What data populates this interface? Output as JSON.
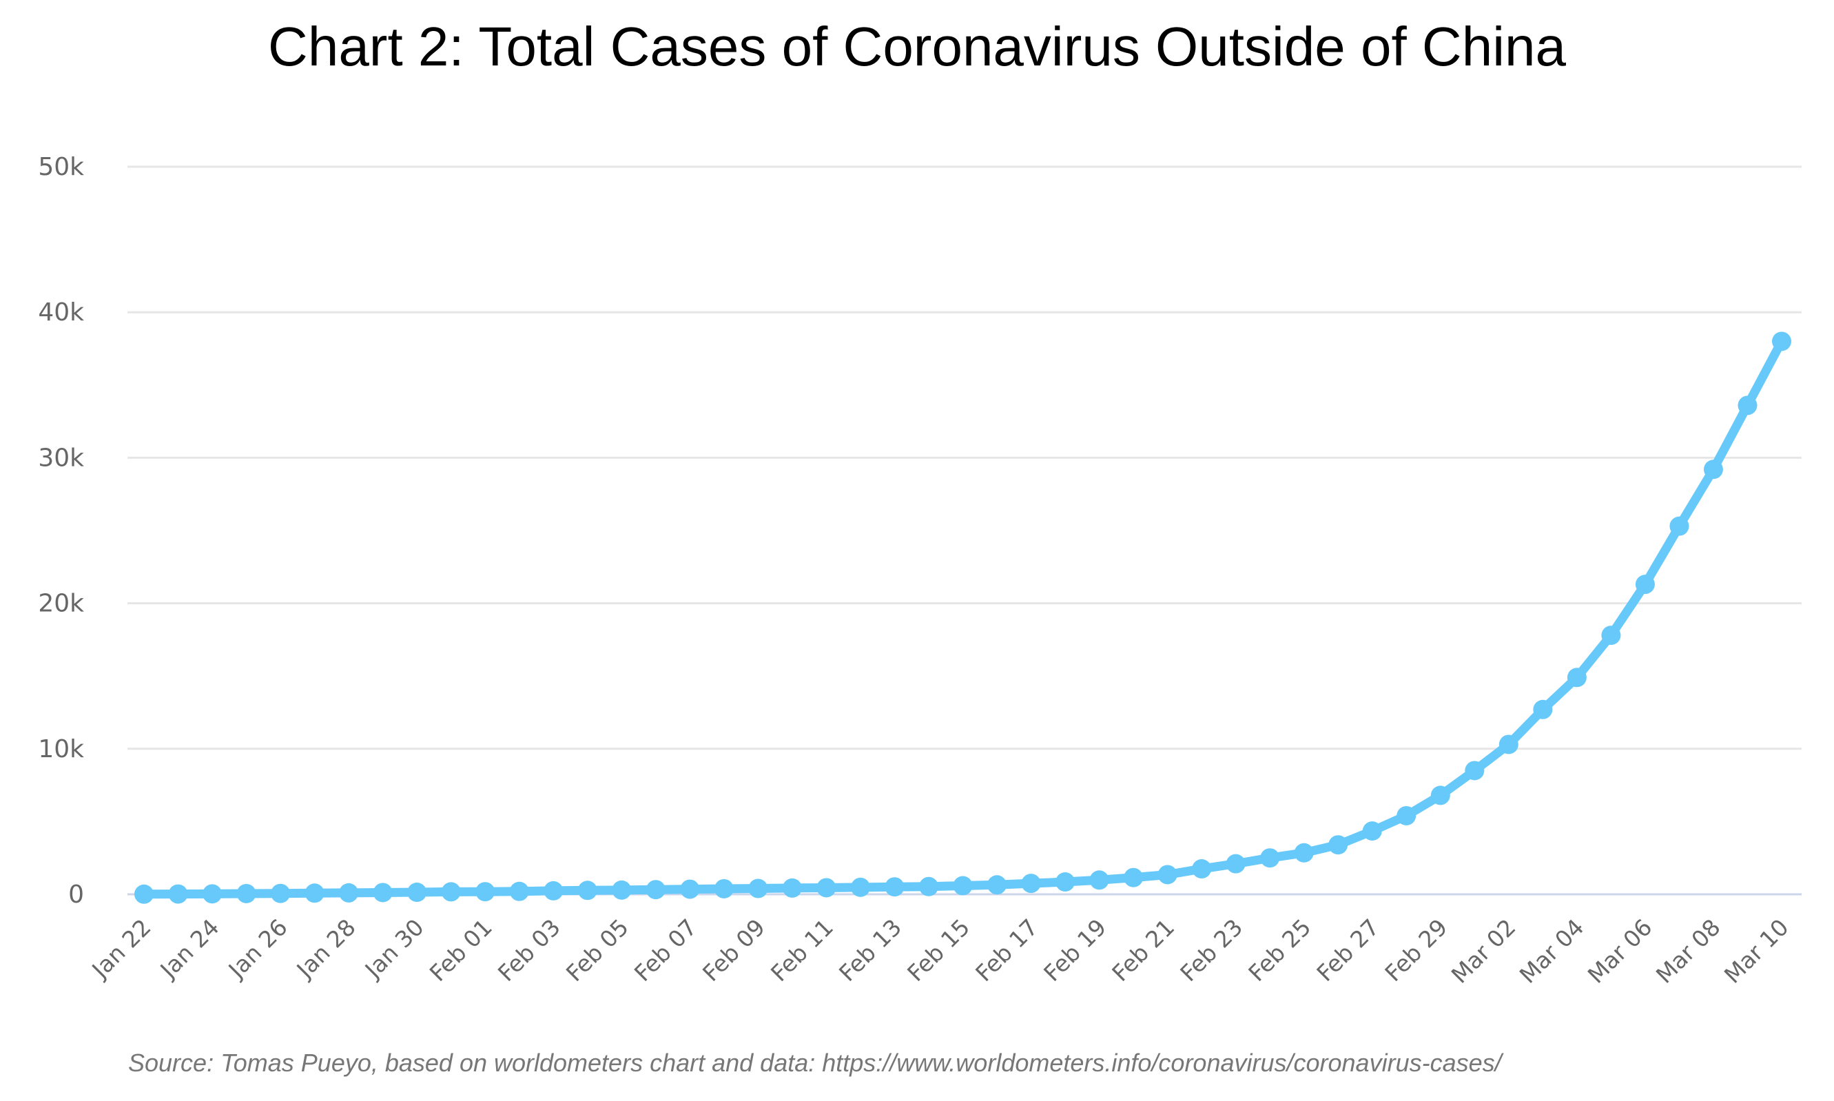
{
  "chart_data": {
    "type": "line",
    "title": "Chart 2: Total Cases of Coronavirus Outside of China",
    "source": "Source: Tomas Pueyo, based on worldometers chart and data: https://www.worldometers.info/coronavirus/coronavirus-cases/",
    "xlabel": "",
    "ylabel": "",
    "ylim": [
      0,
      50000
    ],
    "yticks": [
      0,
      10000,
      20000,
      30000,
      40000,
      50000
    ],
    "ytick_labels": [
      "0",
      "10k",
      "20k",
      "30k",
      "40k",
      "50k"
    ],
    "grid": true,
    "legend": "none",
    "color": "#66c9fa",
    "x": [
      "Jan 22",
      "Jan 23",
      "Jan 24",
      "Jan 25",
      "Jan 26",
      "Jan 27",
      "Jan 28",
      "Jan 29",
      "Jan 30",
      "Jan 31",
      "Feb 01",
      "Feb 02",
      "Feb 03",
      "Feb 04",
      "Feb 05",
      "Feb 06",
      "Feb 07",
      "Feb 08",
      "Feb 09",
      "Feb 10",
      "Feb 11",
      "Feb 12",
      "Feb 13",
      "Feb 14",
      "Feb 15",
      "Feb 16",
      "Feb 17",
      "Feb 18",
      "Feb 19",
      "Feb 20",
      "Feb 21",
      "Feb 22",
      "Feb 23",
      "Feb 24",
      "Feb 25",
      "Feb 26",
      "Feb 27",
      "Feb 28",
      "Feb 29",
      "Mar 01",
      "Mar 02",
      "Mar 03",
      "Mar 04",
      "Mar 05",
      "Mar 06",
      "Mar 07",
      "Mar 08",
      "Mar 09",
      "Mar 10"
    ],
    "xtick_labels": [
      "Jan 22",
      "Jan 24",
      "Jan 26",
      "Jan 28",
      "Jan 30",
      "Feb 01",
      "Feb 03",
      "Feb 05",
      "Feb 07",
      "Feb 09",
      "Feb 11",
      "Feb 13",
      "Feb 15",
      "Feb 17",
      "Feb 19",
      "Feb 21",
      "Feb 23",
      "Feb 25",
      "Feb 27",
      "Feb 29",
      "Mar 02",
      "Mar 04",
      "Mar 06",
      "Mar 08",
      "Mar 10"
    ],
    "values": [
      10,
      20,
      30,
      50,
      60,
      80,
      100,
      120,
      140,
      170,
      180,
      200,
      240,
      270,
      290,
      320,
      350,
      380,
      400,
      430,
      450,
      480,
      510,
      530,
      590,
      650,
      750,
      850,
      980,
      1150,
      1350,
      1750,
      2100,
      2500,
      2850,
      3400,
      4350,
      5400,
      6800,
      8500,
      10300,
      12700,
      14900,
      17800,
      21300,
      25300,
      29200,
      33600,
      38000
    ]
  }
}
